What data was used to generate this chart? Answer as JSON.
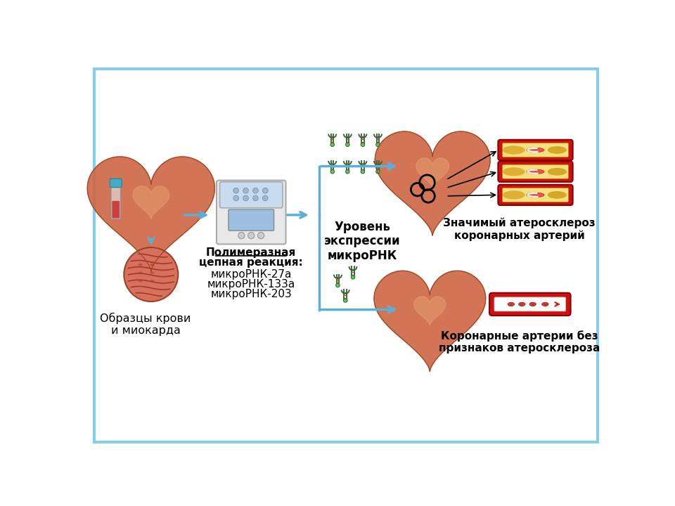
{
  "background_color": "#ffffff",
  "border_color": "#87CEEB",
  "border_linewidth": 3,
  "outer_bg": "#ffffff",
  "inner_bg": "#ffffff",
  "labels": {
    "step1_title": "Образцы крови\nи миокарда",
    "step2_line1": "Полимеразная",
    "step2_line2": "цепная реакция:",
    "step2_sub1": "микроРНК-27а",
    "step2_sub2": "микроРНК-133а",
    "step2_sub3": "микроРНК-203",
    "step3_title": "Уровень\nэкспрессии\nмикроРНК",
    "outcome1_title": "Значимый атеросклероз\nкоронарных артерий",
    "outcome2_title": "Коронарные артерии без\nпризнаков атеросклероза"
  },
  "arrow_color": "#5BAFD6",
  "text_color": "#000000",
  "heart_color": "#CC6644",
  "heart_color2": "#D4885A",
  "blood_red": "#CC1111",
  "blood_dark": "#8B0000",
  "plaque_color": "#DAA520",
  "plaque_light": "#F5E080",
  "green_dark": "#336633",
  "green_light": "#55CC55",
  "pcr_body": "#E8E8E8",
  "pcr_lid": "#C8DCF0",
  "pcr_screen": "#9DBFE0",
  "tissue_color": "#C86050",
  "tube_red": "#CC3333",
  "tube_cap": "#44AACC"
}
